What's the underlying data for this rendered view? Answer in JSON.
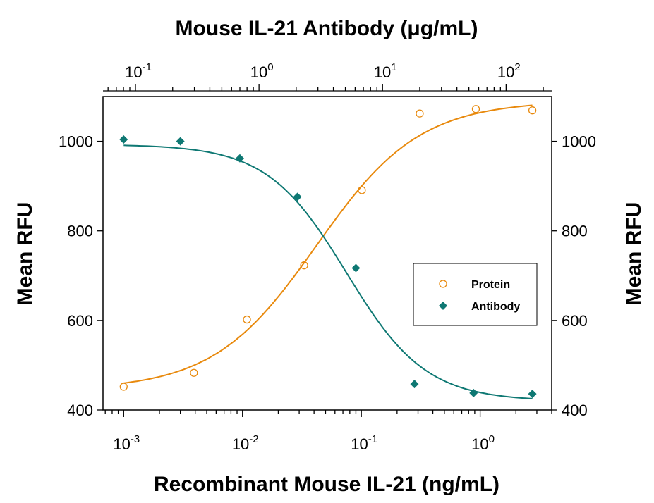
{
  "chart_data": {
    "type": "scatter",
    "title": "",
    "top_xlabel": "Mouse IL-21 Antibody (μg/mL)",
    "xlabel": "Recombinant Mouse IL-21 (ng/mL)",
    "ylabel": "Mean RFU",
    "ylabel_right": "Mean RFU",
    "x_scale": "log",
    "xlim": [
      0.00067,
      4.0
    ],
    "top_xlim": [
      0.0546,
      234
    ],
    "ylim": [
      400,
      1100
    ],
    "x_ticks": [
      {
        "base": "10",
        "exp": "-3",
        "v": 0.001
      },
      {
        "base": "10",
        "exp": "-2",
        "v": 0.01
      },
      {
        "base": "10",
        "exp": "-1",
        "v": 0.1
      },
      {
        "base": "10",
        "exp": "0",
        "v": 1
      }
    ],
    "top_x_ticks": [
      {
        "base": "10",
        "exp": "-1",
        "v": 0.1
      },
      {
        "base": "10",
        "exp": "0",
        "v": 1
      },
      {
        "base": "10",
        "exp": "1",
        "v": 10
      },
      {
        "base": "10",
        "exp": "2",
        "v": 100
      }
    ],
    "y_ticks": [
      "400",
      "600",
      "800",
      "1000"
    ],
    "legend_position": "center-right",
    "grid": false,
    "series": [
      {
        "name": "Protein",
        "marker": "open-circle",
        "color": "#e8890c",
        "x": [
          0.001,
          0.0039,
          0.0109,
          0.033,
          0.101,
          0.31,
          0.92,
          2.75
        ],
        "y": [
          452,
          483,
          602,
          723,
          891,
          1062,
          1072,
          1069
        ],
        "fit": {
          "bottom": 445,
          "top": 1090,
          "ec50": 0.042,
          "hill": 1.0
        }
      },
      {
        "name": "Antibody",
        "marker": "filled-diamond",
        "color": "#0e7873",
        "x": [
          0.001,
          0.003,
          0.0095,
          0.029,
          0.09,
          0.28,
          0.88,
          2.75
        ],
        "y": [
          1004,
          1000,
          962,
          876,
          717,
          458,
          438,
          436
        ],
        "fit": {
          "bottom": 420,
          "top": 993,
          "ec50": 0.075,
          "hill": 1.3
        }
      }
    ]
  }
}
